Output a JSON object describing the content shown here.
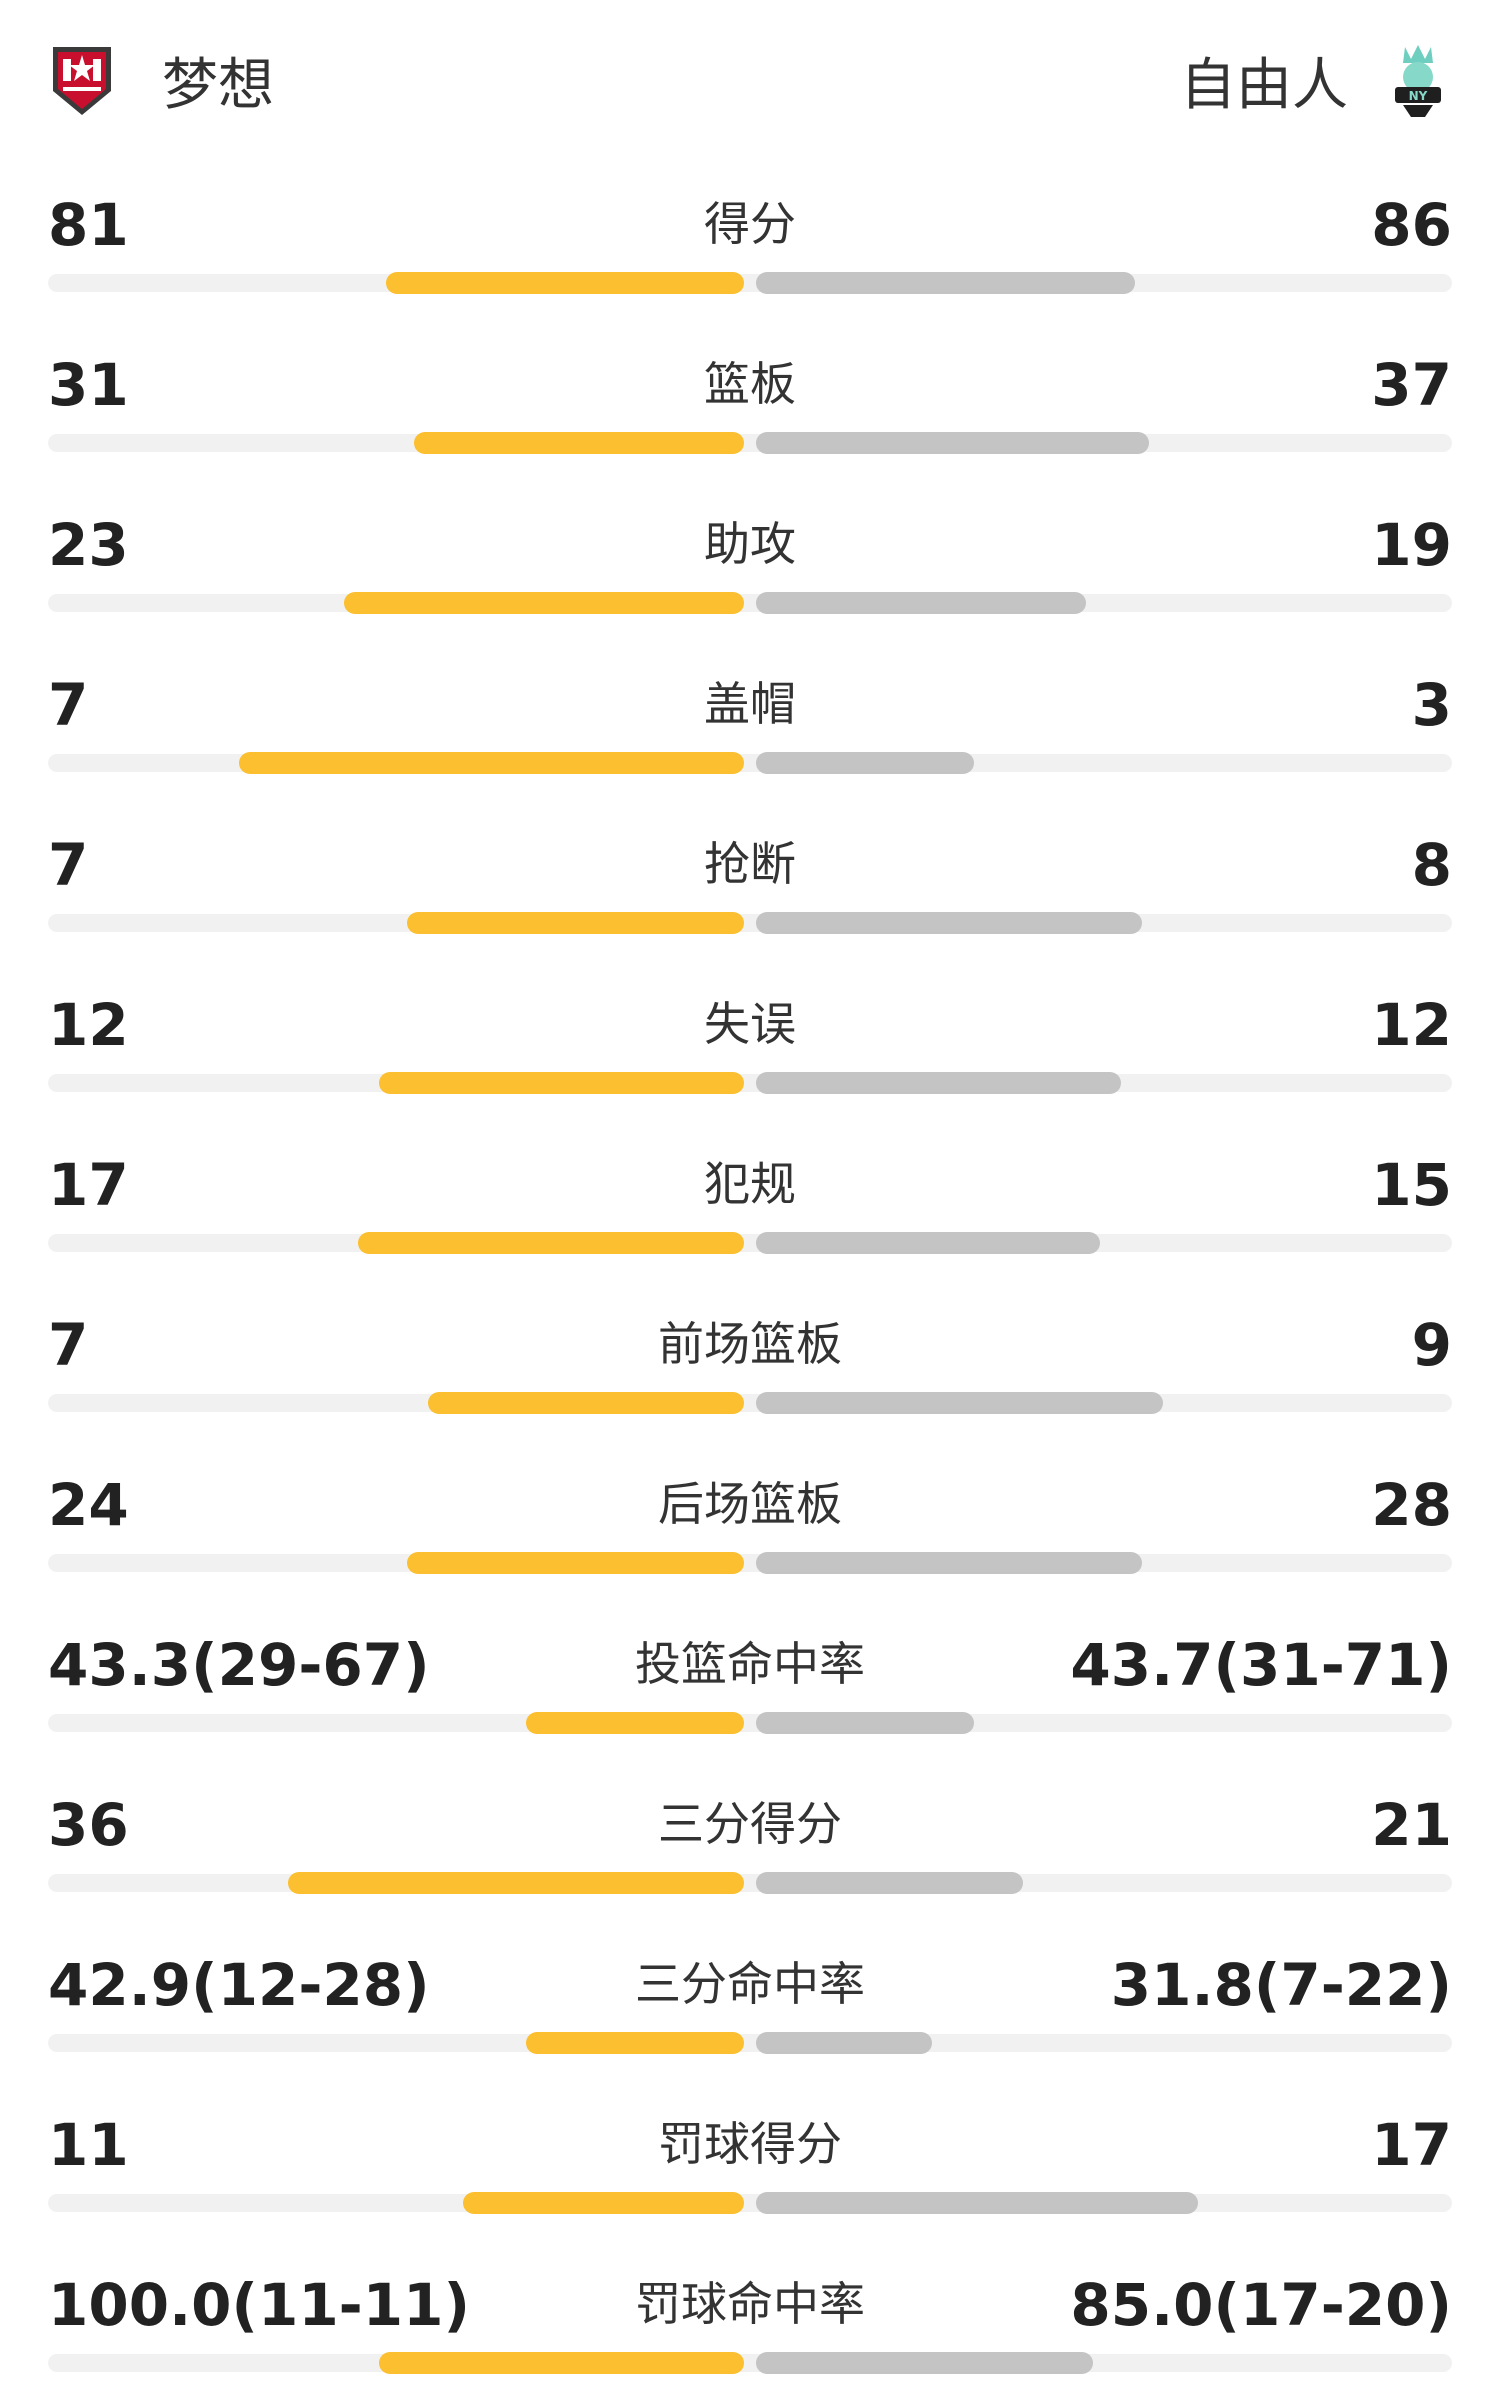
{
  "home": {
    "name": "梦想",
    "logo_icon": "dream-logo-icon",
    "color": "#fbbf2f"
  },
  "away": {
    "name": "自由人",
    "logo_icon": "liberty-logo-icon",
    "color": "#c4c4c4"
  },
  "stats": [
    {
      "label": "得分",
      "home": "81",
      "away": "86",
      "home_ratio": 0.51,
      "away_ratio": 0.54
    },
    {
      "label": "篮板",
      "home": "31",
      "away": "37",
      "home_ratio": 0.47,
      "away_ratio": 0.56
    },
    {
      "label": "助攻",
      "home": "23",
      "away": "19",
      "home_ratio": 0.57,
      "away_ratio": 0.47
    },
    {
      "label": "盖帽",
      "home": "7",
      "away": "3",
      "home_ratio": 0.72,
      "away_ratio": 0.31
    },
    {
      "label": "抢断",
      "home": "7",
      "away": "8",
      "home_ratio": 0.48,
      "away_ratio": 0.55
    },
    {
      "label": "失误",
      "home": "12",
      "away": "12",
      "home_ratio": 0.52,
      "away_ratio": 0.52
    },
    {
      "label": "犯规",
      "home": "17",
      "away": "15",
      "home_ratio": 0.55,
      "away_ratio": 0.49
    },
    {
      "label": "前场篮板",
      "home": "7",
      "away": "9",
      "home_ratio": 0.45,
      "away_ratio": 0.58
    },
    {
      "label": "后场篮板",
      "home": "24",
      "away": "28",
      "home_ratio": 0.48,
      "away_ratio": 0.55
    },
    {
      "label": "投篮命中率",
      "home": "43.3(29-67)",
      "away": "43.7(31-71)",
      "home_ratio": 0.31,
      "away_ratio": 0.31
    },
    {
      "label": "三分得分",
      "home": "36",
      "away": "21",
      "home_ratio": 0.65,
      "away_ratio": 0.38
    },
    {
      "label": "三分命中率",
      "home": "42.9(12-28)",
      "away": "31.8(7-22)",
      "home_ratio": 0.31,
      "away_ratio": 0.25
    },
    {
      "label": "罚球得分",
      "home": "11",
      "away": "17",
      "home_ratio": 0.4,
      "away_ratio": 0.63
    },
    {
      "label": "罚球命中率",
      "home": "100.0(11-11)",
      "away": "85.0(17-20)",
      "home_ratio": 0.52,
      "away_ratio": 0.48
    }
  ]
}
